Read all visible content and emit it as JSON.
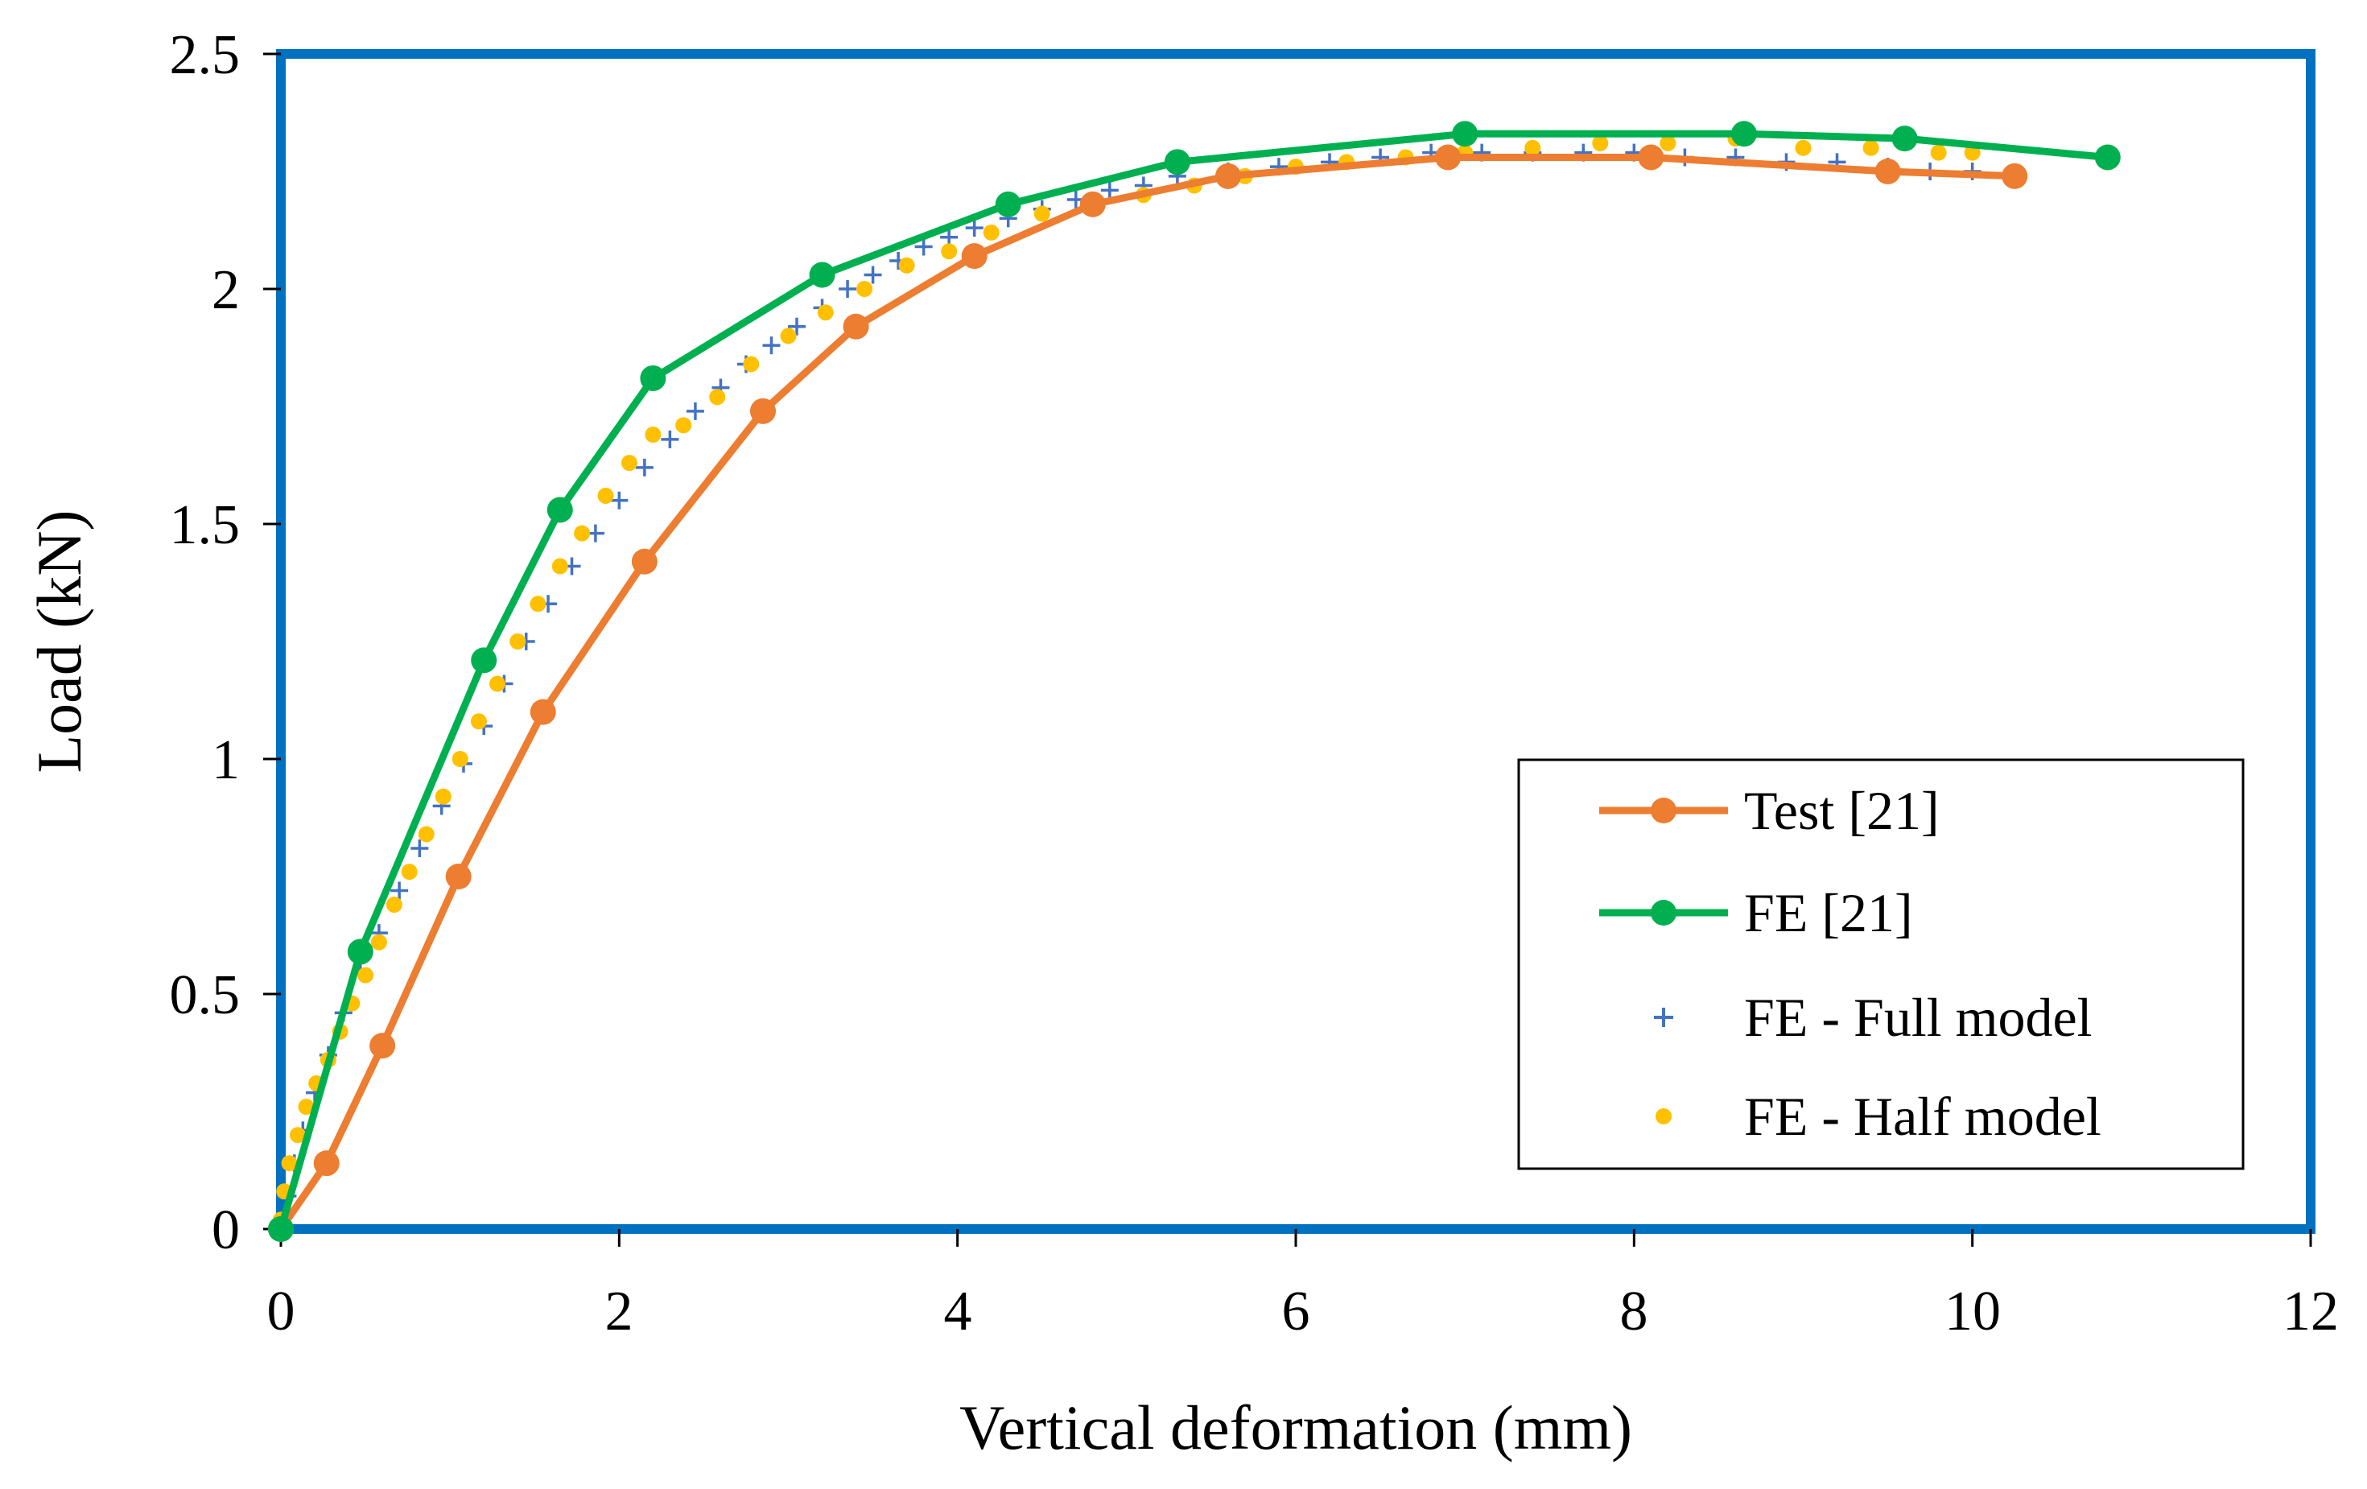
{
  "chart_data": {
    "type": "line",
    "title": "",
    "xlabel": "Vertical deformation (mm)",
    "ylabel": "Load (kN)",
    "xlim": [
      0,
      12
    ],
    "ylim": [
      0,
      2.5
    ],
    "xticks": [
      "0",
      "2",
      "4",
      "6",
      "8",
      "10",
      "12"
    ],
    "yticks": [
      "0",
      "0.5",
      "1",
      "1.5",
      "2",
      "2.5"
    ],
    "grid": false,
    "legend_position": "bottom-right",
    "colors": {
      "frame": "#0070c0",
      "test": "#ed7d31",
      "fe": "#00b050",
      "full": "#4472c4",
      "half": "#ffc000"
    },
    "series": [
      {
        "name": "Test [21]",
        "style": "line-circle",
        "x": [
          0,
          0.27,
          0.6,
          1.05,
          1.55,
          2.15,
          2.85,
          3.4,
          4.1,
          4.8,
          5.6,
          6.9,
          8.1,
          9.5,
          10.25
        ],
        "y": [
          0,
          0.14,
          0.39,
          0.75,
          1.1,
          1.42,
          1.74,
          1.92,
          2.07,
          2.18,
          2.24,
          2.28,
          2.28,
          2.25,
          2.24
        ]
      },
      {
        "name": "FE [21]",
        "style": "line-circle",
        "x": [
          0,
          0.47,
          1.2,
          1.65,
          2.2,
          3.2,
          4.3,
          5.3,
          7.0,
          8.65,
          9.6,
          10.8
        ],
        "y": [
          0,
          0.59,
          1.21,
          1.53,
          1.81,
          2.03,
          2.18,
          2.27,
          2.33,
          2.33,
          2.32,
          2.28
        ]
      },
      {
        "name": "FE - Full model",
        "style": "plus",
        "x": [
          0,
          0.04,
          0.08,
          0.13,
          0.2,
          0.28,
          0.37,
          0.47,
          0.58,
          0.7,
          0.82,
          0.95,
          1.08,
          1.2,
          1.32,
          1.45,
          1.58,
          1.72,
          1.86,
          2.0,
          2.15,
          2.3,
          2.45,
          2.6,
          2.75,
          2.9,
          3.05,
          3.2,
          3.35,
          3.5,
          3.65,
          3.8,
          3.95,
          4.1,
          4.3,
          4.5,
          4.7,
          4.9,
          5.1,
          5.3,
          5.6,
          5.9,
          6.2,
          6.5,
          6.8,
          7.1,
          7.4,
          7.7,
          8.0,
          8.3,
          8.6,
          8.9,
          9.2,
          9.5,
          9.75,
          10.0
        ],
        "y": [
          0,
          0.07,
          0.14,
          0.21,
          0.29,
          0.37,
          0.46,
          0.55,
          0.63,
          0.72,
          0.81,
          0.9,
          0.99,
          1.07,
          1.16,
          1.25,
          1.33,
          1.41,
          1.48,
          1.55,
          1.62,
          1.68,
          1.74,
          1.79,
          1.84,
          1.88,
          1.92,
          1.96,
          2.0,
          2.03,
          2.06,
          2.09,
          2.11,
          2.13,
          2.15,
          2.17,
          2.19,
          2.21,
          2.22,
          2.24,
          2.25,
          2.26,
          2.27,
          2.28,
          2.29,
          2.29,
          2.29,
          2.29,
          2.29,
          2.28,
          2.28,
          2.27,
          2.27,
          2.26,
          2.25,
          2.25
        ]
      },
      {
        "name": "FE - Half model",
        "style": "dot",
        "x": [
          0,
          0.02,
          0.05,
          0.1,
          0.15,
          0.21,
          0.28,
          0.35,
          0.42,
          0.5,
          0.58,
          0.67,
          0.76,
          0.86,
          0.96,
          1.06,
          1.17,
          1.28,
          1.4,
          1.52,
          1.65,
          1.78,
          1.92,
          2.06,
          2.2,
          2.38,
          2.58,
          2.78,
          3.0,
          3.22,
          3.45,
          3.7,
          3.95,
          4.2,
          4.5,
          4.8,
          5.1,
          5.4,
          5.7,
          6.0,
          6.3,
          6.65,
          7.0,
          7.4,
          7.8,
          8.2,
          8.6,
          9.0,
          9.4,
          9.8,
          10.0
        ],
        "y": [
          0.02,
          0.08,
          0.14,
          0.2,
          0.26,
          0.31,
          0.36,
          0.42,
          0.48,
          0.54,
          0.61,
          0.69,
          0.76,
          0.84,
          0.92,
          1.0,
          1.08,
          1.16,
          1.25,
          1.33,
          1.41,
          1.48,
          1.56,
          1.63,
          1.69,
          1.71,
          1.77,
          1.84,
          1.9,
          1.95,
          2.0,
          2.05,
          2.08,
          2.12,
          2.16,
          2.18,
          2.2,
          2.22,
          2.24,
          2.26,
          2.27,
          2.28,
          2.29,
          2.3,
          2.31,
          2.31,
          2.32,
          2.3,
          2.3,
          2.29,
          2.29
        ]
      }
    ]
  }
}
